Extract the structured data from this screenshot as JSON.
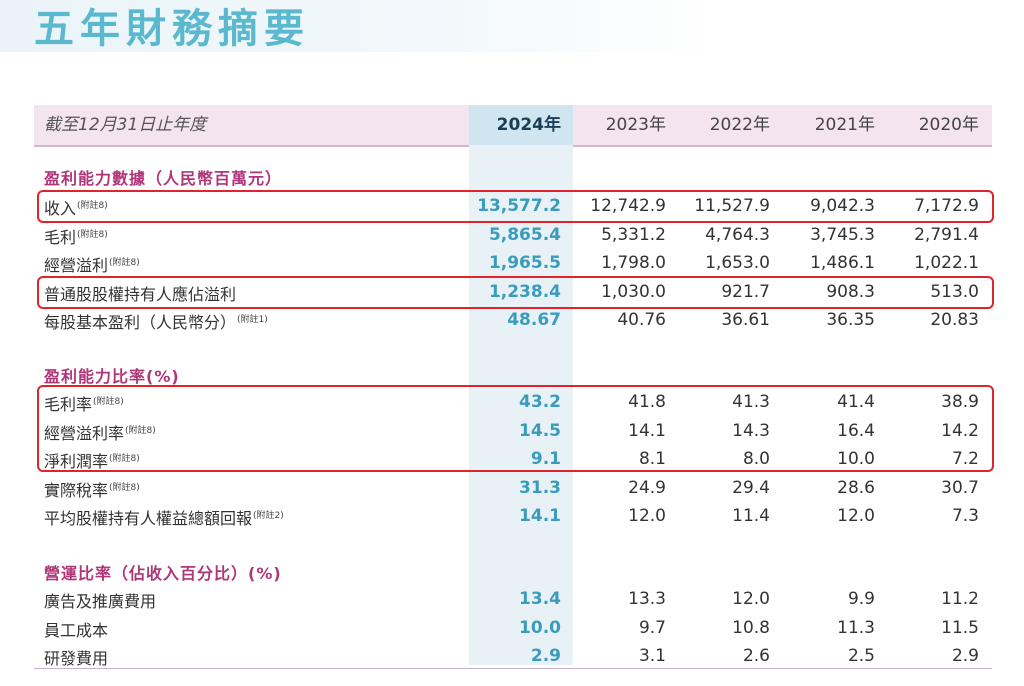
{
  "title": "五年財務摘要",
  "header": {
    "label": "截至12月31日止年度",
    "years": [
      "2024年",
      "2023年",
      "2022年",
      "2021年",
      "2020年"
    ]
  },
  "sections": [
    {
      "title": "盈利能力數據（人民幣百萬元）",
      "rows": [
        {
          "label": "收入",
          "note": "(附註8)",
          "values": [
            "13,577.2",
            "12,742.9",
            "11,527.9",
            "9,042.3",
            "7,172.9"
          ]
        },
        {
          "label": "毛利",
          "note": "(附註8)",
          "values": [
            "5,865.4",
            "5,331.2",
            "4,764.3",
            "3,745.3",
            "2,791.4"
          ]
        },
        {
          "label": "經營溢利",
          "note": "(附註8)",
          "values": [
            "1,965.5",
            "1,798.0",
            "1,653.0",
            "1,486.1",
            "1,022.1"
          ]
        },
        {
          "label": "普通股股權持有人應佔溢利",
          "note": "",
          "values": [
            "1,238.4",
            "1,030.0",
            "921.7",
            "908.3",
            "513.0"
          ]
        },
        {
          "label": "每股基本盈利（人民幣分）",
          "note": "(附註1)",
          "values": [
            "48.67",
            "40.76",
            "36.61",
            "36.35",
            "20.83"
          ]
        }
      ]
    },
    {
      "title": "盈利能力比率(%)",
      "rows": [
        {
          "label": "毛利率",
          "note": "(附註8)",
          "values": [
            "43.2",
            "41.8",
            "41.3",
            "41.4",
            "38.9"
          ]
        },
        {
          "label": "經營溢利率",
          "note": "(附註8)",
          "values": [
            "14.5",
            "14.1",
            "14.3",
            "16.4",
            "14.2"
          ]
        },
        {
          "label": "淨利潤率",
          "note": "(附註8)",
          "values": [
            "9.1",
            "8.1",
            "8.0",
            "10.0",
            "7.2"
          ]
        },
        {
          "label": "實際稅率",
          "note": "(附註8)",
          "values": [
            "31.3",
            "24.9",
            "29.4",
            "28.6",
            "30.7"
          ]
        },
        {
          "label": "平均股權持有人權益總額回報",
          "note": "(附註2)",
          "values": [
            "14.1",
            "12.0",
            "11.4",
            "12.0",
            "7.3"
          ]
        }
      ]
    },
    {
      "title": "營運比率（佔收入百分比）(%)",
      "rows": [
        {
          "label": "廣告及推廣費用",
          "note": "",
          "values": [
            "13.4",
            "13.3",
            "12.0",
            "9.9",
            "11.2"
          ]
        },
        {
          "label": "員工成本",
          "note": "",
          "values": [
            "10.0",
            "9.7",
            "10.8",
            "11.3",
            "11.5"
          ]
        },
        {
          "label": "研發費用",
          "note": "",
          "values": [
            "2.9",
            "3.1",
            "2.6",
            "2.5",
            "2.9"
          ]
        }
      ]
    }
  ],
  "colors": {
    "title": "#5ab8cf",
    "section_title": "#b0367a",
    "current_year_value": "#3a9cbd",
    "highlight_box": "#e0242d"
  }
}
